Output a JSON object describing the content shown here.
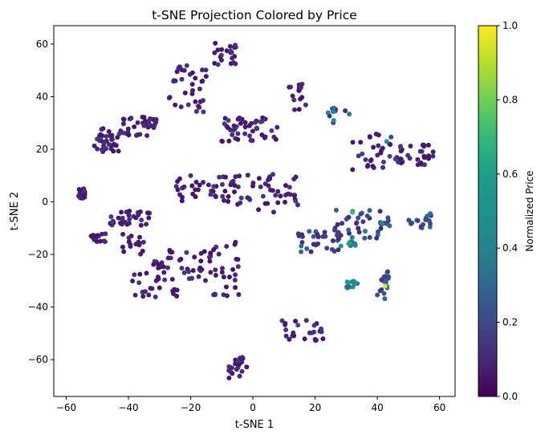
{
  "chart_data": {
    "type": "scatter",
    "title": "t-SNE Projection Colored by Price",
    "xlabel": "t-SNE 1",
    "ylabel": "t-SNE 2",
    "xlim": [
      -64,
      65
    ],
    "ylim": [
      -74,
      67
    ],
    "xticks": [
      -60,
      -40,
      -20,
      0,
      20,
      40,
      60
    ],
    "yticks": [
      -60,
      -40,
      -20,
      0,
      20,
      40,
      60
    ],
    "xtick_labels": [
      "−60",
      "−40",
      "−20",
      "0",
      "20",
      "40",
      "60"
    ],
    "ytick_labels": [
      "−60",
      "−40",
      "−20",
      "0",
      "20",
      "40",
      "60"
    ],
    "grid": false,
    "colormap": "viridis",
    "colorbar": {
      "label": "Normalized Price",
      "range": [
        0,
        1
      ],
      "ticks": [
        0.0,
        0.2,
        0.4,
        0.6,
        0.8,
        1.0
      ],
      "tick_labels": [
        "0.0",
        "0.2",
        "0.4",
        "0.6",
        "0.8",
        "1.0"
      ]
    },
    "clusters": [
      {
        "x": [
          -56,
          -54
        ],
        "y": [
          1,
          5
        ],
        "price": [
          0.05,
          0.12
        ],
        "n": 40
      },
      {
        "x": [
          -51,
          -43
        ],
        "y": [
          19,
          28
        ],
        "price": [
          0.05,
          0.15
        ],
        "n": 35
      },
      {
        "x": [
          -43,
          -31
        ],
        "y": [
          25,
          33
        ],
        "price": [
          0.05,
          0.14
        ],
        "n": 40
      },
      {
        "x": [
          -46,
          -33
        ],
        "y": [
          -9,
          -3
        ],
        "price": [
          0.05,
          0.18
        ],
        "n": 30
      },
      {
        "x": [
          -52,
          -47
        ],
        "y": [
          -16,
          -12
        ],
        "price": [
          0.05,
          0.12
        ],
        "n": 14
      },
      {
        "x": [
          -42,
          -35
        ],
        "y": [
          -20,
          -12
        ],
        "price": [
          0.05,
          0.12
        ],
        "n": 16
      },
      {
        "x": [
          -27,
          -15
        ],
        "y": [
          34,
          52
        ],
        "price": [
          0.05,
          0.15
        ],
        "n": 35
      },
      {
        "x": [
          -13,
          -5
        ],
        "y": [
          52,
          61
        ],
        "price": [
          0.05,
          0.15
        ],
        "n": 22
      },
      {
        "x": [
          -10,
          9
        ],
        "y": [
          23,
          33
        ],
        "price": [
          0.05,
          0.2
        ],
        "n": 45
      },
      {
        "x": [
          -25,
          -5
        ],
        "y": [
          0,
          10
        ],
        "price": [
          0.05,
          0.15
        ],
        "n": 40
      },
      {
        "x": [
          -6,
          15
        ],
        "y": [
          -4,
          11
        ],
        "price": [
          0.05,
          0.18
        ],
        "n": 45
      },
      {
        "x": [
          -32,
          -13
        ],
        "y": [
          -30,
          -18
        ],
        "price": [
          0.05,
          0.15
        ],
        "n": 40
      },
      {
        "x": [
          -14,
          -4
        ],
        "y": [
          -36,
          -15
        ],
        "price": [
          0.05,
          0.15
        ],
        "n": 30
      },
      {
        "x": [
          -40,
          -28
        ],
        "y": [
          -37,
          -27
        ],
        "price": [
          0.05,
          0.15
        ],
        "n": 16
      },
      {
        "x": [
          -26,
          -22
        ],
        "y": [
          -38,
          -33
        ],
        "price": [
          0.05,
          0.1
        ],
        "n": 6
      },
      {
        "x": [
          10,
          17
        ],
        "y": [
          35,
          46
        ],
        "price": [
          0.05,
          0.15
        ],
        "n": 15
      },
      {
        "x": [
          24,
          31
        ],
        "y": [
          30,
          36
        ],
        "price": [
          0.1,
          0.55
        ],
        "n": 10
      },
      {
        "x": [
          32,
          47
        ],
        "y": [
          12,
          26
        ],
        "price": [
          0.05,
          0.2
        ],
        "n": 30
      },
      {
        "x": [
          46,
          58
        ],
        "y": [
          14,
          22
        ],
        "price": [
          0.05,
          0.18
        ],
        "n": 30
      },
      {
        "x": [
          14,
          28
        ],
        "y": [
          -19,
          -11
        ],
        "price": [
          0.1,
          0.35
        ],
        "n": 30
      },
      {
        "x": [
          26,
          42
        ],
        "y": [
          -14,
          -3
        ],
        "price": [
          0.1,
          0.4
        ],
        "n": 35
      },
      {
        "x": [
          28,
          34
        ],
        "y": [
          -17,
          -15
        ],
        "price": [
          0.3,
          0.65
        ],
        "n": 8
      },
      {
        "x": [
          50,
          58
        ],
        "y": [
          -10,
          -4
        ],
        "price": [
          0.15,
          0.4
        ],
        "n": 18
      },
      {
        "x": [
          41,
          44
        ],
        "y": [
          -10,
          -6
        ],
        "price": [
          0.2,
          0.45
        ],
        "n": 8
      },
      {
        "x": [
          30,
          34
        ],
        "y": [
          -33,
          -30
        ],
        "price": [
          0.3,
          0.6
        ],
        "n": 12
      },
      {
        "x": [
          40,
          44
        ],
        "y": [
          -37,
          -25
        ],
        "price": [
          0.15,
          0.5
        ],
        "n": 18
      },
      {
        "x": [
          9,
          24
        ],
        "y": [
          -53,
          -45
        ],
        "price": [
          0.05,
          0.2
        ],
        "n": 25
      },
      {
        "x": [
          -8,
          -2
        ],
        "y": [
          -67,
          -59
        ],
        "price": [
          0.05,
          0.15
        ],
        "n": 20
      }
    ],
    "highlights": [
      {
        "x": 42.5,
        "y": -32,
        "price": 0.95
      },
      {
        "x": 32,
        "y": -4,
        "price": 0.72
      },
      {
        "x": 31,
        "y": -16,
        "price": 0.62
      },
      {
        "x": 33,
        "y": -31,
        "price": 0.58
      },
      {
        "x": 26,
        "y": 31,
        "price": 0.5
      },
      {
        "x": 43,
        "y": 23,
        "price": 0.55
      }
    ]
  }
}
